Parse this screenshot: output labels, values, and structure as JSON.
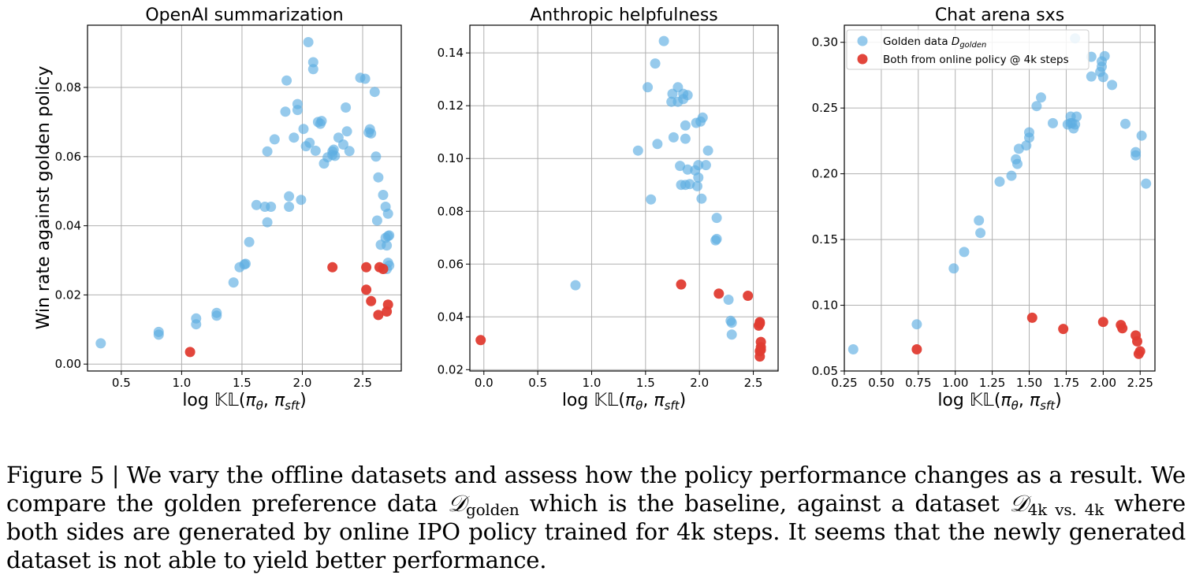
{
  "colors": {
    "golden": "#5DADE2",
    "online": "#E03C31",
    "grid": "#b0b0b0"
  },
  "legend": {
    "golden_label": "Golden data",
    "golden_math_main": "D",
    "golden_math_sub": "golden",
    "online_label": "Both from online policy @ 4k steps"
  },
  "ylabel_shared": "Win rate against golden policy",
  "xlabel_parts": {
    "prefix": "log ",
    "kl": "𝕂𝕃",
    "open": "(",
    "pi1": "π",
    "sub1": "θ",
    "comma": ", ",
    "pi2": "π",
    "sub2": "sft",
    "close": ")"
  },
  "caption": {
    "label": "Figure 5 | ",
    "part1": "We vary the offline datasets and assess how the policy performance changes as a result. We compare the golden preference data ",
    "math1": "𝒟",
    "sub1": "golden",
    "part2": " which is the baseline, against a dataset ",
    "math2": "𝒟",
    "sub2": "4k vs. 4k",
    "part3": " where both sides are generated by online IPO policy trained for 4k steps. It seems that the newly generated dataset is not able to yield better performance."
  },
  "chart_data": [
    {
      "type": "scatter",
      "title": "OpenAI summarization",
      "xlabel": "log 𝕂𝕃(π_θ, π_sft)",
      "ylabel": "Win rate against golden policy",
      "xlim": [
        0.22,
        2.82
      ],
      "ylim": [
        -0.002,
        0.098
      ],
      "xticks": [
        0.5,
        1.0,
        1.5,
        2.0,
        2.5
      ],
      "xtick_labels": [
        "0.5",
        "1.0",
        "1.5",
        "2.0",
        "2.5"
      ],
      "yticks": [
        0.0,
        0.02,
        0.04,
        0.06,
        0.08
      ],
      "ytick_labels": [
        "0.00",
        "0.02",
        "0.04",
        "0.06",
        "0.08"
      ],
      "grid": true,
      "series": [
        {
          "name": "Golden data",
          "color": "#5DADE2",
          "points": [
            [
              0.33,
              0.006
            ],
            [
              0.81,
              0.0085
            ],
            [
              0.81,
              0.0093
            ],
            [
              1.12,
              0.0115
            ],
            [
              1.12,
              0.0132
            ],
            [
              1.29,
              0.014
            ],
            [
              1.29,
              0.0148
            ],
            [
              1.43,
              0.0236
            ],
            [
              1.48,
              0.028
            ],
            [
              1.52,
              0.0288
            ],
            [
              1.53,
              0.029
            ],
            [
              1.56,
              0.0353
            ],
            [
              1.62,
              0.046
            ],
            [
              1.69,
              0.0455
            ],
            [
              1.71,
              0.041
            ],
            [
              1.71,
              0.0615
            ],
            [
              1.74,
              0.0455
            ],
            [
              1.77,
              0.065
            ],
            [
              1.86,
              0.073
            ],
            [
              1.87,
              0.082
            ],
            [
              1.89,
              0.0485
            ],
            [
              1.89,
              0.0455
            ],
            [
              1.93,
              0.0655
            ],
            [
              1.96,
              0.0735
            ],
            [
              1.96,
              0.0752
            ],
            [
              1.99,
              0.0475
            ],
            [
              2.01,
              0.068
            ],
            [
              2.03,
              0.063
            ],
            [
              2.05,
              0.0931
            ],
            [
              2.06,
              0.064
            ],
            [
              2.09,
              0.0873
            ],
            [
              2.09,
              0.0853
            ],
            [
              2.11,
              0.0617
            ],
            [
              2.13,
              0.07
            ],
            [
              2.15,
              0.0695
            ],
            [
              2.16,
              0.0703
            ],
            [
              2.18,
              0.058
            ],
            [
              2.21,
              0.0598
            ],
            [
              2.25,
              0.0615
            ],
            [
              2.25,
              0.0605
            ],
            [
              2.26,
              0.062
            ],
            [
              2.27,
              0.0602
            ],
            [
              2.3,
              0.0655
            ],
            [
              2.34,
              0.0635
            ],
            [
              2.36,
              0.0742
            ],
            [
              2.37,
              0.0673
            ],
            [
              2.39,
              0.0616
            ],
            [
              2.48,
              0.0828
            ],
            [
              2.52,
              0.0825
            ],
            [
              2.55,
              0.067
            ],
            [
              2.56,
              0.0679
            ],
            [
              2.57,
              0.0667
            ],
            [
              2.6,
              0.0787
            ],
            [
              2.61,
              0.06
            ],
            [
              2.62,
              0.0415
            ],
            [
              2.63,
              0.054
            ],
            [
              2.65,
              0.0345
            ],
            [
              2.67,
              0.0489
            ],
            [
              2.69,
              0.0455
            ],
            [
              2.69,
              0.0365
            ],
            [
              2.7,
              0.0343
            ],
            [
              2.7,
              0.0275
            ],
            [
              2.71,
              0.0293
            ],
            [
              2.71,
              0.037
            ],
            [
              2.71,
              0.0435
            ],
            [
              2.72,
              0.0285
            ],
            [
              2.72,
              0.0372
            ]
          ]
        },
        {
          "name": "Both from online policy @ 4k steps",
          "color": "#E03C31",
          "points": [
            [
              1.07,
              0.0035
            ],
            [
              2.25,
              0.028
            ],
            [
              2.53,
              0.028
            ],
            [
              2.53,
              0.0215
            ],
            [
              2.57,
              0.0182
            ],
            [
              2.63,
              0.0142
            ],
            [
              2.64,
              0.028
            ],
            [
              2.67,
              0.0275
            ],
            [
              2.7,
              0.0152
            ],
            [
              2.71,
              0.0172
            ]
          ]
        }
      ]
    },
    {
      "type": "scatter",
      "title": "Anthropic helpfulness",
      "xlabel": "log 𝕂𝕃(π_θ, π_sft)",
      "ylabel": "",
      "xlim": [
        -0.13,
        2.73
      ],
      "ylim": [
        0.0195,
        0.1505
      ],
      "xticks": [
        0.0,
        0.5,
        1.0,
        1.5,
        2.0,
        2.5
      ],
      "xtick_labels": [
        "0.0",
        "0.5",
        "1.0",
        "1.5",
        "2.0",
        "2.5"
      ],
      "yticks": [
        0.02,
        0.04,
        0.06,
        0.08,
        0.1,
        0.12,
        0.14
      ],
      "ytick_labels": [
        "0.02",
        "0.04",
        "0.06",
        "0.08",
        "0.10",
        "0.12",
        "0.14"
      ],
      "grid": true,
      "series": [
        {
          "name": "Golden data",
          "color": "#5DADE2",
          "points": [
            [
              0.85,
              0.052
            ],
            [
              1.43,
              0.103
            ],
            [
              1.52,
              0.127
            ],
            [
              1.55,
              0.0845
            ],
            [
              1.59,
              0.136
            ],
            [
              1.61,
              0.1055
            ],
            [
              1.67,
              0.1445
            ],
            [
              1.74,
              0.1215
            ],
            [
              1.75,
              0.1245
            ],
            [
              1.76,
              0.108
            ],
            [
              1.8,
              0.1215
            ],
            [
              1.8,
              0.127
            ],
            [
              1.82,
              0.0972
            ],
            [
              1.83,
              0.09
            ],
            [
              1.85,
              0.1225
            ],
            [
              1.85,
              0.1245
            ],
            [
              1.87,
              0.1075
            ],
            [
              1.87,
              0.1125
            ],
            [
              1.87,
              0.09
            ],
            [
              1.89,
              0.0958
            ],
            [
              1.89,
              0.124
            ],
            [
              1.91,
              0.0903
            ],
            [
              1.96,
              0.0955
            ],
            [
              1.97,
              0.1135
            ],
            [
              1.98,
              0.0895
            ],
            [
              1.99,
              0.0975
            ],
            [
              1.99,
              0.0928
            ],
            [
              2.01,
              0.114
            ],
            [
              2.02,
              0.0848
            ],
            [
              2.03,
              0.1155
            ],
            [
              2.06,
              0.0975
            ],
            [
              2.08,
              0.103
            ],
            [
              2.15,
              0.069
            ],
            [
              2.16,
              0.0775
            ],
            [
              2.16,
              0.0695
            ],
            [
              2.27,
              0.0465
            ],
            [
              2.29,
              0.0385
            ],
            [
              2.3,
              0.0378
            ],
            [
              2.3,
              0.0333
            ]
          ]
        },
        {
          "name": "Both from online policy @ 4k steps",
          "color": "#E03C31",
          "points": [
            [
              -0.03,
              0.0312
            ],
            [
              1.83,
              0.0523
            ],
            [
              2.18,
              0.0488
            ],
            [
              2.45,
              0.048
            ],
            [
              2.55,
              0.0367
            ],
            [
              2.56,
              0.0375
            ],
            [
              2.56,
              0.038
            ],
            [
              2.57,
              0.0285
            ],
            [
              2.57,
              0.0305
            ],
            [
              2.56,
              0.027
            ],
            [
              2.56,
              0.025
            ],
            [
              2.57,
              0.0275
            ]
          ]
        }
      ]
    },
    {
      "type": "scatter",
      "title": "Chat arena sxs",
      "xlabel": "log 𝕂𝕃(π_θ, π_sft)",
      "ylabel": "",
      "xlim": [
        0.25,
        2.35
      ],
      "ylim": [
        0.05,
        0.313
      ],
      "xticks": [
        0.25,
        0.5,
        0.75,
        1.0,
        1.25,
        1.5,
        1.75,
        2.0,
        2.25
      ],
      "xtick_labels": [
        "0.25",
        "0.50",
        "0.75",
        "1.00",
        "1.25",
        "1.50",
        "1.75",
        "2.00",
        "2.25"
      ],
      "yticks": [
        0.05,
        0.1,
        0.15,
        0.2,
        0.25,
        0.3
      ],
      "ytick_labels": [
        "0.05",
        "0.10",
        "0.15",
        "0.20",
        "0.25",
        "0.30"
      ],
      "grid": true,
      "legend_position": "top-left",
      "series": [
        {
          "name": "Golden data",
          "color": "#5DADE2",
          "points": [
            [
              0.31,
              0.0665
            ],
            [
              0.74,
              0.0855
            ],
            [
              0.99,
              0.128
            ],
            [
              1.06,
              0.1405
            ],
            [
              1.16,
              0.1645
            ],
            [
              1.17,
              0.155
            ],
            [
              1.3,
              0.194
            ],
            [
              1.38,
              0.1985
            ],
            [
              1.41,
              0.211
            ],
            [
              1.42,
              0.2075
            ],
            [
              1.43,
              0.219
            ],
            [
              1.48,
              0.2215
            ],
            [
              1.5,
              0.2275
            ],
            [
              1.5,
              0.2315
            ],
            [
              1.55,
              0.2515
            ],
            [
              1.58,
              0.258
            ],
            [
              1.66,
              0.2385
            ],
            [
              1.76,
              0.2375
            ],
            [
              1.78,
              0.2385
            ],
            [
              1.78,
              0.2435
            ],
            [
              1.79,
              0.2385
            ],
            [
              1.8,
              0.2345
            ],
            [
              1.81,
              0.303
            ],
            [
              1.81,
              0.2375
            ],
            [
              1.82,
              0.2435
            ],
            [
              1.92,
              0.274
            ],
            [
              1.92,
              0.289
            ],
            [
              1.98,
              0.2775
            ],
            [
              1.99,
              0.2855
            ],
            [
              1.99,
              0.2815
            ],
            [
              2.0,
              0.2735
            ],
            [
              2.01,
              0.2895
            ],
            [
              2.06,
              0.2675
            ],
            [
              2.15,
              0.238
            ],
            [
              2.22,
              0.2165
            ],
            [
              2.22,
              0.214
            ],
            [
              2.26,
              0.229
            ],
            [
              2.29,
              0.1925
            ]
          ]
        },
        {
          "name": "Both from online policy @ 4k steps",
          "color": "#E03C31",
          "points": [
            [
              0.74,
              0.0665
            ],
            [
              1.52,
              0.0905
            ],
            [
              1.73,
              0.082
            ],
            [
              2.0,
              0.0873
            ],
            [
              2.12,
              0.085
            ],
            [
              2.13,
              0.0825
            ],
            [
              2.22,
              0.077
            ],
            [
              2.23,
              0.0725
            ],
            [
              2.24,
              0.063
            ],
            [
              2.25,
              0.065
            ]
          ]
        }
      ]
    }
  ]
}
